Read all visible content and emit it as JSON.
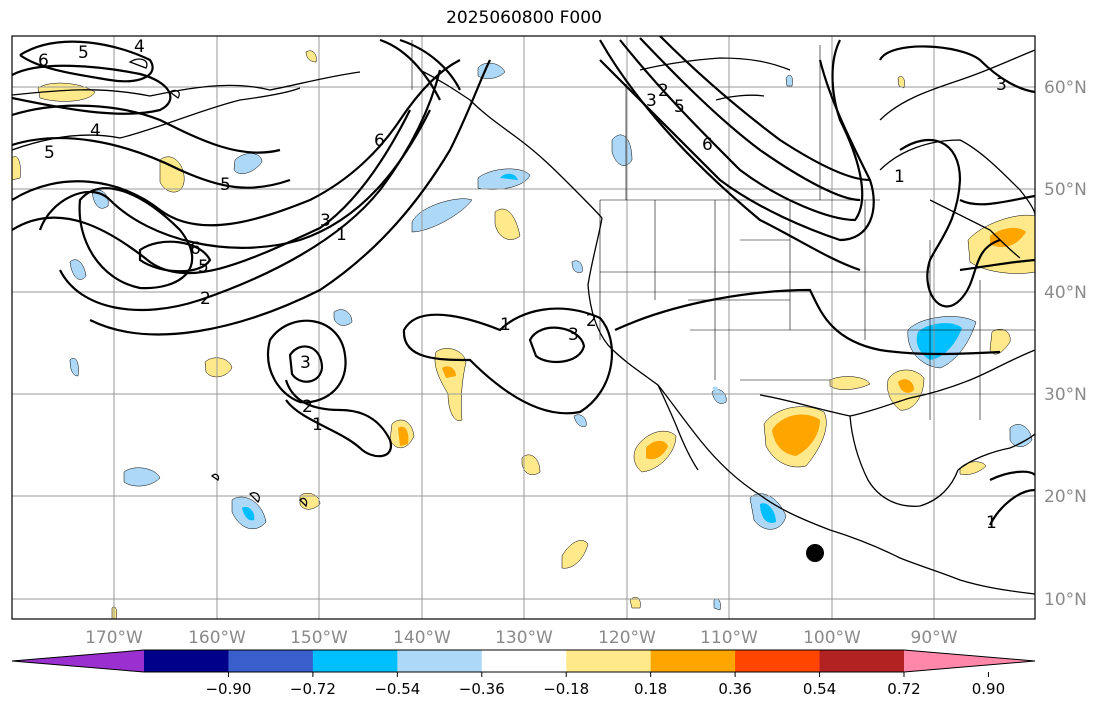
{
  "title": "2025060800 F000",
  "lon_labels": [
    "170°W",
    "160°W",
    "150°W",
    "140°W",
    "130°W",
    "120°W",
    "110°W",
    "100°W",
    "90°W"
  ],
  "lat_labels": [
    "60°N",
    "50°N",
    "40°N",
    "30°N",
    "20°N",
    "10°N"
  ],
  "contour_labels": [
    "6",
    "5",
    "4",
    "4",
    "5",
    "6",
    "5",
    "3",
    "1",
    "6",
    "5",
    "2",
    "3",
    "2",
    "1",
    "3",
    "2",
    "1",
    "3",
    "2",
    "5",
    "6",
    "1",
    "3",
    "1"
  ],
  "colorbar": {
    "colors": [
      "#9b30d0",
      "#00008b",
      "#3a5fcd",
      "#00bfff",
      "#add8f7",
      "#ffffff",
      "#ffe98a",
      "#ffa500",
      "#ff4500",
      "#b22222",
      "#ff88aa"
    ],
    "ticks": [
      "−0.90",
      "−0.72",
      "−0.54",
      "−0.36",
      "−0.18",
      "0.18",
      "0.36",
      "0.54",
      "0.72",
      "0.90"
    ]
  },
  "marker": "filled-circle"
}
